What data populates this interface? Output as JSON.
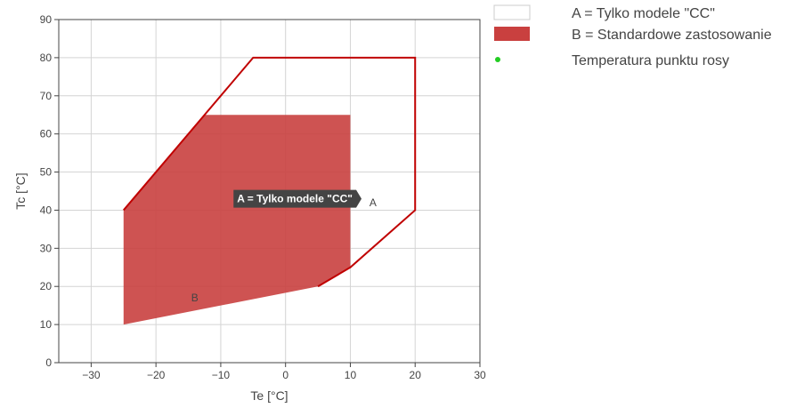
{
  "chart_data": {
    "type": "area",
    "xlabel": "Te [°C]",
    "ylabel": "Tc [°C]",
    "xlim": [
      -35,
      30
    ],
    "ylim": [
      0,
      90
    ],
    "x_ticks": [
      -30,
      -20,
      -10,
      0,
      10,
      20,
      30
    ],
    "x_tick_labels": [
      "−30",
      "−20",
      "−10",
      "0",
      "10",
      "20",
      "30"
    ],
    "y_ticks": [
      0,
      10,
      20,
      30,
      40,
      50,
      60,
      70,
      80,
      90
    ],
    "y_tick_labels": [
      "0",
      "10",
      "20",
      "30",
      "40",
      "50",
      "60",
      "70",
      "80",
      "90"
    ],
    "grid": true,
    "legend_position": "right",
    "series": [
      {
        "name": "A = Tylko modele \"CC\"",
        "kind": "outline",
        "color": "#c00000",
        "label": "A",
        "label_point": [
          13.5,
          42
        ],
        "points": [
          [
            -25,
            40
          ],
          [
            -12.5,
            65
          ],
          [
            -5,
            80
          ],
          [
            20,
            80
          ],
          [
            20,
            40
          ],
          [
            10,
            25
          ],
          [
            5,
            20
          ]
        ]
      },
      {
        "name": "B = Standardowe zastosowanie",
        "kind": "filled",
        "color": "#c9403f",
        "label": "B",
        "label_point": [
          -14,
          17
        ],
        "points": [
          [
            -25,
            10
          ],
          [
            -25,
            40
          ],
          [
            -12.5,
            65
          ],
          [
            10,
            65
          ],
          [
            10,
            25
          ],
          [
            5,
            20
          ]
        ]
      },
      {
        "name": "Temperatura punktu rosy",
        "kind": "scatter",
        "color": "#22cc22",
        "points": []
      }
    ],
    "tooltip": {
      "text": "A = Tylko modele \"CC\"",
      "anchor": [
        12,
        43
      ]
    }
  }
}
